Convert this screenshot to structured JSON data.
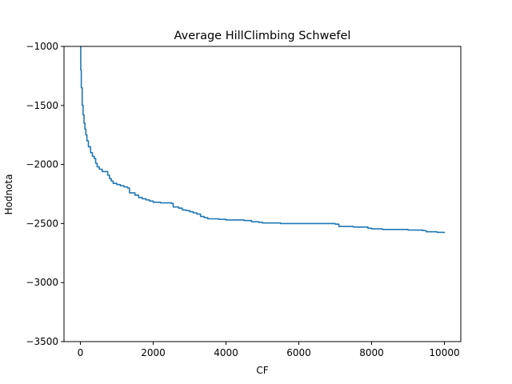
{
  "chart_data": {
    "type": "line",
    "title": "Average HillClimbing Schwefel",
    "xlabel": "CF",
    "ylabel": "Hodnota",
    "xlim": [
      -450,
      10450
    ],
    "ylim": [
      -3500,
      -1000
    ],
    "xticks": [
      0,
      2000,
      4000,
      6000,
      8000,
      10000
    ],
    "yticks": [
      -1000,
      -1500,
      -2000,
      -2500,
      -3000,
      -3500
    ],
    "xtick_labels": [
      "0",
      "2000",
      "4000",
      "6000",
      "8000",
      "10000"
    ],
    "ytick_labels": [
      "−1000",
      "−1500",
      "−2000",
      "−2500",
      "−3000",
      "−3500"
    ],
    "grid": false,
    "series": [
      {
        "color": "#1f77b4",
        "points": [
          [
            0,
            -1000
          ],
          [
            10,
            -1200
          ],
          [
            25,
            -1350
          ],
          [
            50,
            -1500
          ],
          [
            75,
            -1580
          ],
          [
            100,
            -1650
          ],
          [
            125,
            -1700
          ],
          [
            150,
            -1750
          ],
          [
            180,
            -1800
          ],
          [
            220,
            -1850
          ],
          [
            280,
            -1900
          ],
          [
            330,
            -1930
          ],
          [
            380,
            -1950
          ],
          [
            420,
            -1990
          ],
          [
            460,
            -2020
          ],
          [
            520,
            -2040
          ],
          [
            600,
            -2060
          ],
          [
            700,
            -2060
          ],
          [
            750,
            -2090
          ],
          [
            800,
            -2120
          ],
          [
            850,
            -2140
          ],
          [
            900,
            -2160
          ],
          [
            1000,
            -2170
          ],
          [
            1100,
            -2180
          ],
          [
            1200,
            -2190
          ],
          [
            1300,
            -2200
          ],
          [
            1350,
            -2240
          ],
          [
            1450,
            -2240
          ],
          [
            1500,
            -2260
          ],
          [
            1600,
            -2280
          ],
          [
            1700,
            -2290
          ],
          [
            1800,
            -2300
          ],
          [
            1900,
            -2310
          ],
          [
            2000,
            -2320
          ],
          [
            2200,
            -2325
          ],
          [
            2500,
            -2330
          ],
          [
            2550,
            -2360
          ],
          [
            2700,
            -2370
          ],
          [
            2800,
            -2385
          ],
          [
            2900,
            -2390
          ],
          [
            3000,
            -2400
          ],
          [
            3100,
            -2410
          ],
          [
            3200,
            -2420
          ],
          [
            3300,
            -2440
          ],
          [
            3400,
            -2450
          ],
          [
            3500,
            -2460
          ],
          [
            3800,
            -2465
          ],
          [
            4000,
            -2470
          ],
          [
            4500,
            -2475
          ],
          [
            4700,
            -2485
          ],
          [
            4900,
            -2490
          ],
          [
            5000,
            -2495
          ],
          [
            5500,
            -2500
          ],
          [
            6000,
            -2500
          ],
          [
            6500,
            -2500
          ],
          [
            7000,
            -2505
          ],
          [
            7100,
            -2525
          ],
          [
            7500,
            -2530
          ],
          [
            7900,
            -2540
          ],
          [
            8000,
            -2545
          ],
          [
            8300,
            -2550
          ],
          [
            8600,
            -2550
          ],
          [
            9000,
            -2555
          ],
          [
            9400,
            -2560
          ],
          [
            9500,
            -2570
          ],
          [
            9800,
            -2575
          ],
          [
            10000,
            -2580
          ]
        ]
      }
    ]
  }
}
